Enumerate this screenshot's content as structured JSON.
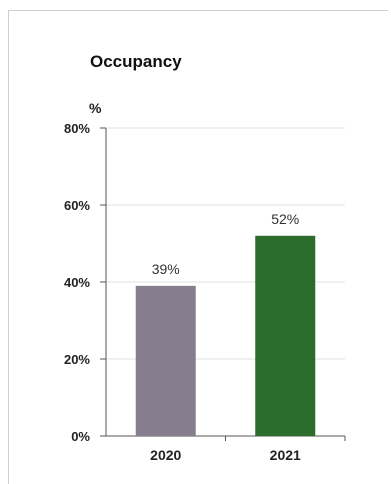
{
  "chart_data": {
    "type": "bar",
    "title": "Occupancy",
    "ylabel": "%",
    "categories": [
      "2020",
      "2021"
    ],
    "values": [
      39,
      52
    ],
    "value_labels": [
      "39%",
      "52%"
    ],
    "yticks": [
      0,
      20,
      40,
      60,
      80
    ],
    "ytick_labels": [
      "0%",
      "20%",
      "40%",
      "60%",
      "80%"
    ],
    "ylim": [
      0,
      80
    ],
    "grid": true,
    "colors": [
      "#867e8c",
      "#2b6b2b"
    ]
  }
}
